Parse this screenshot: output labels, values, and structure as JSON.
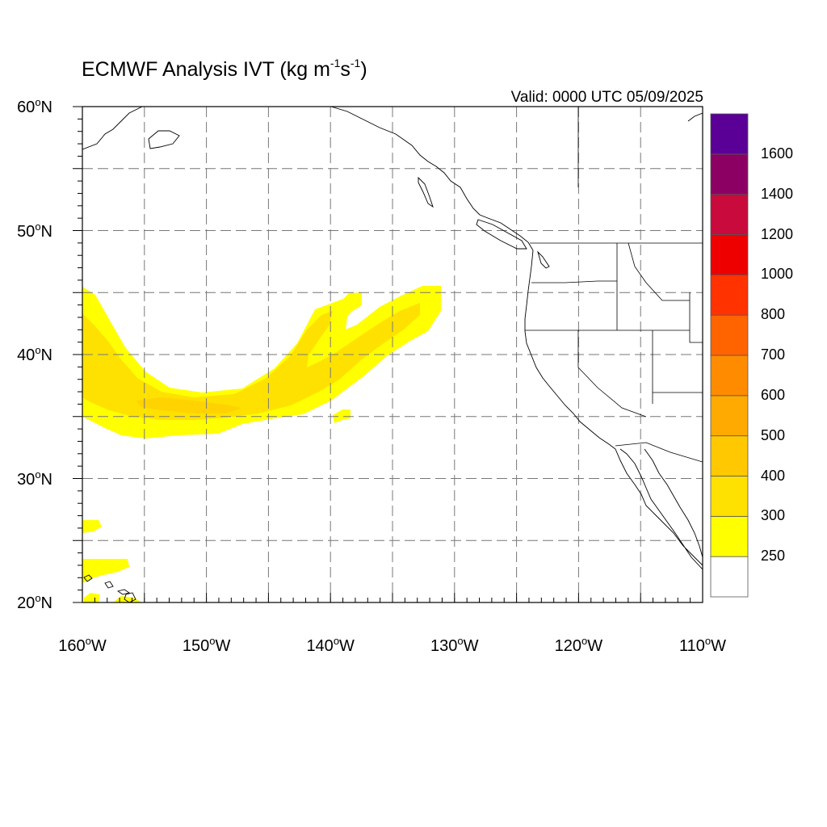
{
  "title": {
    "main": "ECMWF Analysis IVT (kg m",
    "sup1": "-1",
    "mid": "s",
    "sup2": "-1",
    "end": ")"
  },
  "valid_time": "Valid: 0000 UTC 05/09/2025",
  "degree_mark": "o",
  "map": {
    "projection": "cylindrical equidistant",
    "lon_range": [
      -160,
      -110
    ],
    "lat_range": [
      20,
      60
    ],
    "grid_interval_deg": 5,
    "grid_style": "dashed gray",
    "lat_labels": [
      {
        "value": 60,
        "num": "60",
        "hemi": "N"
      },
      {
        "value": 50,
        "num": "50",
        "hemi": "N"
      },
      {
        "value": 40,
        "num": "40",
        "hemi": "N"
      },
      {
        "value": 30,
        "num": "30",
        "hemi": "N"
      },
      {
        "value": 20,
        "num": "20",
        "hemi": "N"
      }
    ],
    "lon_labels": [
      {
        "value": -160,
        "num": "160",
        "hemi": "W"
      },
      {
        "value": -150,
        "num": "150",
        "hemi": "W"
      },
      {
        "value": -140,
        "num": "140",
        "hemi": "W"
      },
      {
        "value": -130,
        "num": "130",
        "hemi": "W"
      },
      {
        "value": -120,
        "num": "120",
        "hemi": "W"
      },
      {
        "value": -110,
        "num": "110",
        "hemi": "W"
      }
    ]
  },
  "colorbar": {
    "levels": [
      "250",
      "300",
      "400",
      "500",
      "600",
      "700",
      "800",
      "1000",
      "1200",
      "1400",
      "1600"
    ],
    "colors": [
      "#ffffff",
      "#ffff00",
      "#ffe100",
      "#ffc800",
      "#ffaa00",
      "#ff8c00",
      "#ff6400",
      "#ff3200",
      "#ee0000",
      "#c80a3c",
      "#8c0064",
      "#5a0096"
    ]
  },
  "ivt_colors": {
    "light": "#ffff00",
    "mid": "#ffe100",
    "strong": "#ffc800"
  }
}
